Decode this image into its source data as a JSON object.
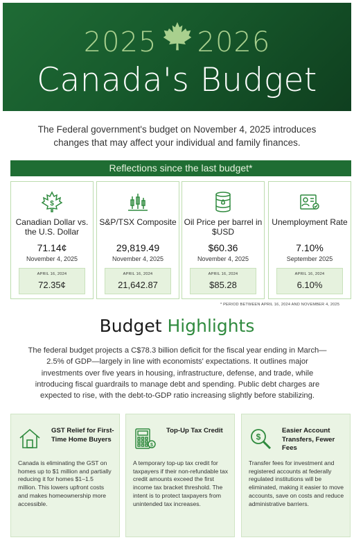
{
  "hero": {
    "year_start": "2025",
    "year_end": "2026",
    "title": "Canada's Budget",
    "leaf_icon": "maple-leaf-icon",
    "colors": {
      "background": "#175a2c",
      "year": "#a9d08e",
      "title": "#ffffff"
    }
  },
  "intro": "The Federal government's budget on November 4, 2025 introduces changes that may affect your individual and family finances.",
  "band": {
    "label": "Reflections since the last budget*",
    "color": "#1f6d33"
  },
  "stats": [
    {
      "icon": "dollar-leaf-icon",
      "label": "Canadian Dollar vs. the U.S. Dollar",
      "value": "71.14¢",
      "date": "November 4, 2025",
      "prev_date": "APRIL 16, 2024",
      "prev_value": "72.35¢"
    },
    {
      "icon": "stock-chart-icon",
      "label": "S&P/TSX Composite",
      "value": "29,819.49",
      "date": "November 4, 2025",
      "prev_date": "APRIL 16, 2024",
      "prev_value": "21,642.87"
    },
    {
      "icon": "oil-barrel-icon",
      "label": "Oil Price per barrel in $USD",
      "value": "$60.36",
      "date": "November 4, 2025",
      "prev_date": "APRIL 16, 2024",
      "prev_value": "$85.28"
    },
    {
      "icon": "id-card-icon",
      "label": "Unemployment Rate",
      "value": "7.10%",
      "date": "September 2025",
      "prev_date": "APRIL 16, 2024",
      "prev_value": "6.10%"
    }
  ],
  "footnote": "* PERIOD BETWEEN APRIL 16, 2024 AND NOVEMBER 4, 2025",
  "highlights": {
    "title_main": "Budget",
    "title_accent": "Highlights",
    "accent_color": "#2f8a3e",
    "text": "The federal budget projects a C$78.3 billion deficit for the fiscal year ending in March—2.5% of GDP—largely in line with economists' expectations. It outlines major investments over five years in housing, infrastructure, defense, and trade, while introducing fiscal guardrails to manage debt and spending. Public debt charges are expected to rise, with the debt-to-GDP ratio increasing slightly before stabilizing."
  },
  "features": [
    {
      "icon": "house-icon",
      "title": "GST Relief for First-Time Home Buyers",
      "text": "Canada is eliminating the GST on homes up to $1 million and partially reducing it for homes $1–1.5 million. This lowers upfront costs and makes homeownership more accessible."
    },
    {
      "icon": "calculator-icon",
      "title": "Top-Up Tax Credit",
      "text": "A temporary top-up tax credit for taxpayers if their non-refundable tax credit amounts exceed the first income tax bracket threshold. The intent is to protect taxpayers from unintended tax increases."
    },
    {
      "icon": "magnifier-dollar-icon",
      "title": "Easier Account Transfers, Fewer Fees",
      "text": "Transfer fees for investment and registered accounts at federally regulated institutions will be eliminated, making it easier to move accounts, save on costs and reduce administrative barriers."
    }
  ]
}
